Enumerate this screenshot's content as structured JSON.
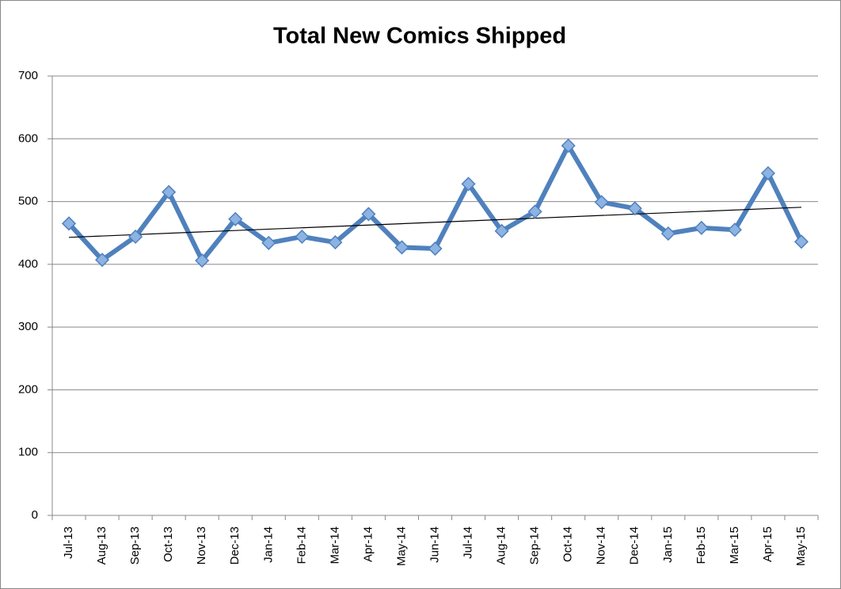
{
  "chart_data": {
    "type": "line",
    "title": "Total New Comics Shipped",
    "categories": [
      "Jul-13",
      "Aug-13",
      "Sep-13",
      "Oct-13",
      "Nov-13",
      "Dec-13",
      "Jan-14",
      "Feb-14",
      "Mar-14",
      "Apr-14",
      "May-14",
      "Jun-14",
      "Jul-14",
      "Aug-14",
      "Sep-14",
      "Oct-14",
      "Nov-14",
      "Dec-14",
      "Jan-15",
      "Feb-15",
      "Mar-15",
      "Apr-15",
      "May-15"
    ],
    "values": [
      465,
      407,
      444,
      515,
      406,
      472,
      434,
      444,
      435,
      480,
      427,
      425,
      528,
      453,
      484,
      589,
      499,
      489,
      449,
      458,
      455,
      545,
      436
    ],
    "color": "#4f81bd",
    "ylim": [
      0,
      700
    ],
    "yticks": [
      0,
      100,
      200,
      300,
      400,
      500,
      600,
      700
    ],
    "grid": true,
    "trendline": true
  }
}
